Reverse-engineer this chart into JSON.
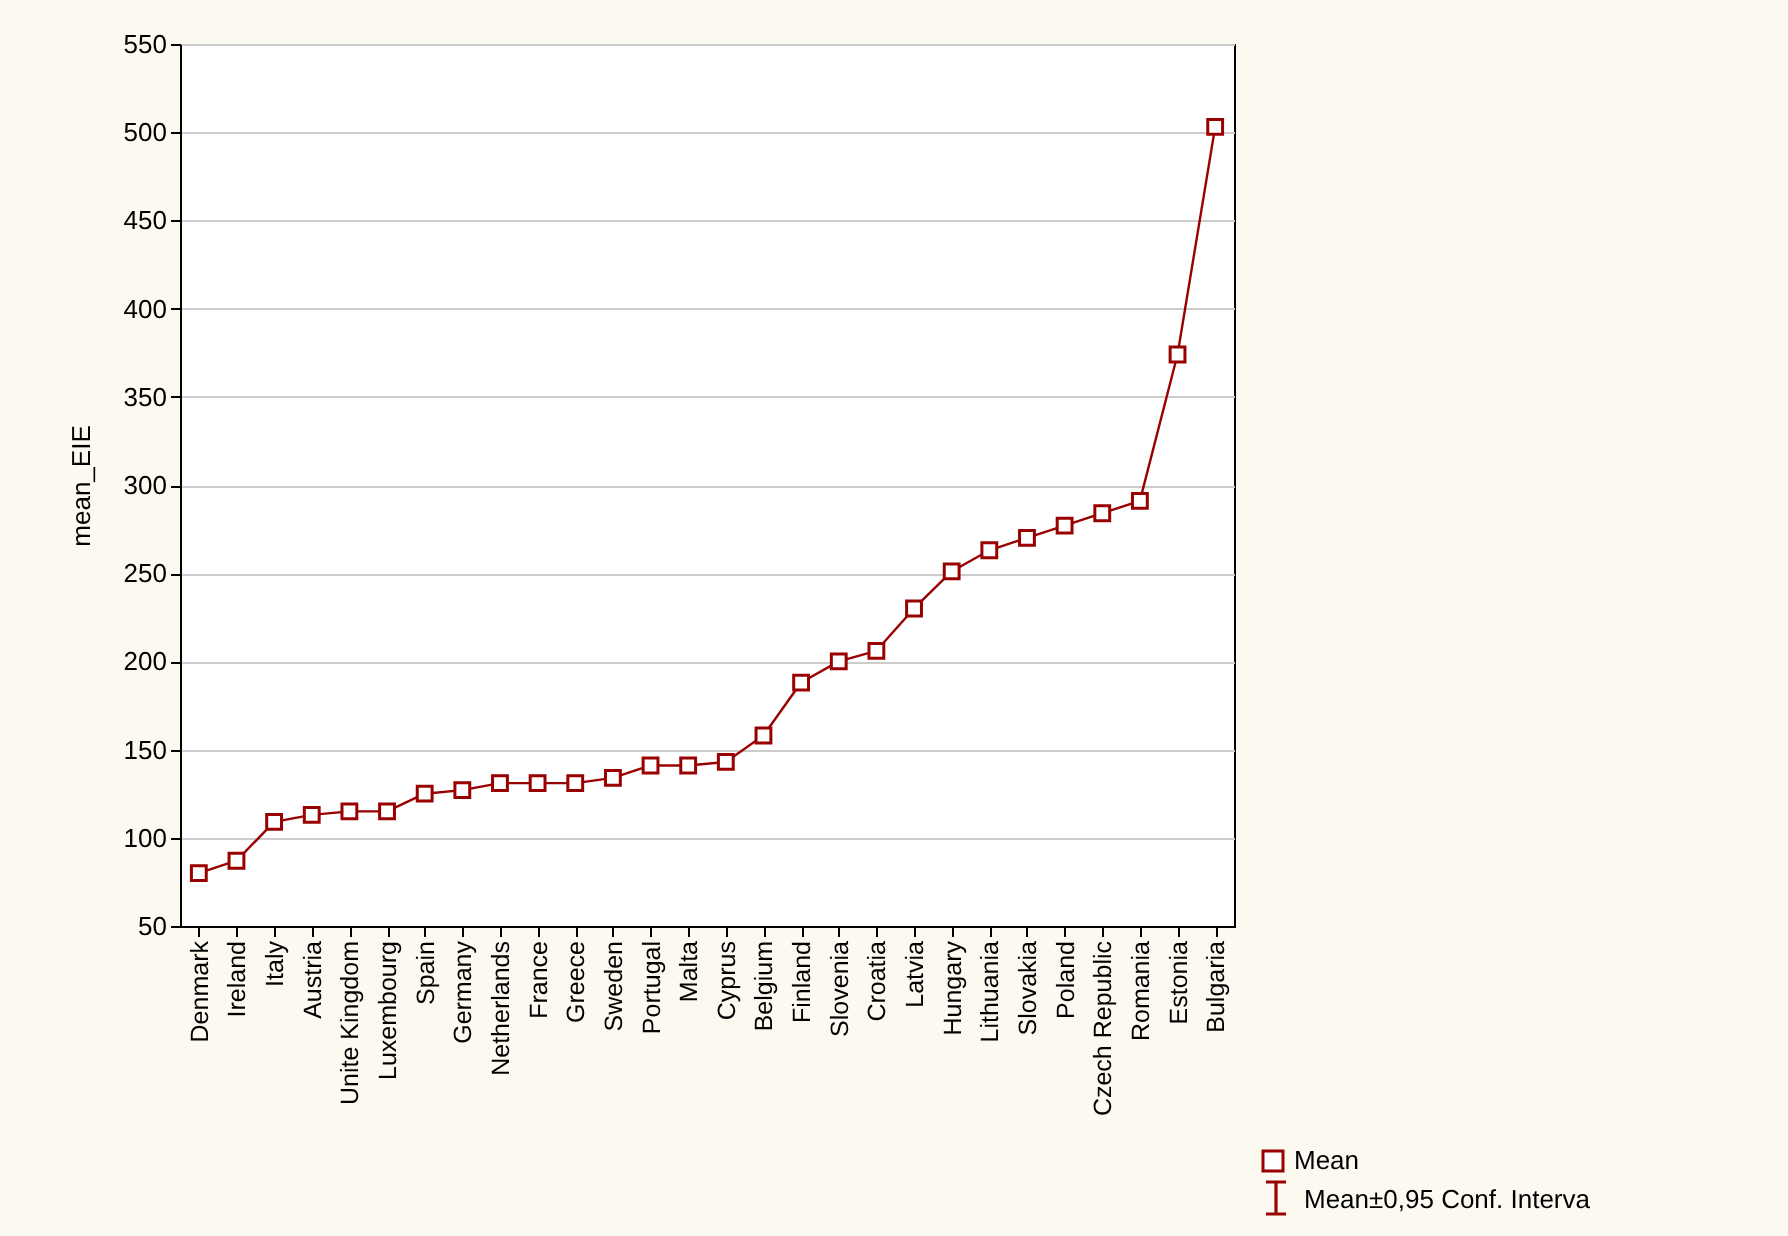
{
  "chart_data": {
    "type": "line",
    "ylabel": "mean_EIE",
    "categories": [
      "Denmark",
      "Ireland",
      "Italy",
      "Austria",
      "Unite Kingdom",
      "Luxembourg",
      "Spain",
      "Germany",
      "Netherlands",
      "France",
      "Greece",
      "Sweden",
      "Portugal",
      "Malta",
      "Cyprus",
      "Belgium",
      "Finland",
      "Slovenia",
      "Croatia",
      "Latvia",
      "Hungary",
      "Lithuania",
      "Slovakia",
      "Poland",
      "Czech Republic",
      "Romania",
      "Estonia",
      "Bulgaria"
    ],
    "series": [
      {
        "name": "Mean",
        "color": "#990000",
        "values": [
          80,
          87,
          109,
          113,
          115,
          115,
          125,
          127,
          131,
          131,
          131,
          134,
          141,
          141,
          143,
          158,
          188,
          200,
          206,
          230,
          251,
          263,
          270,
          277,
          284,
          291,
          374,
          503
        ]
      }
    ],
    "ylim": [
      50,
      550
    ],
    "yticks": [
      50,
      100,
      150,
      200,
      250,
      300,
      350,
      400,
      450,
      500,
      550
    ],
    "grid": "y",
    "marker": "square",
    "line_style": "solid",
    "legend": "bottom right",
    "annotations": [
      "Mean±0,95 Conf. Interva"
    ]
  }
}
